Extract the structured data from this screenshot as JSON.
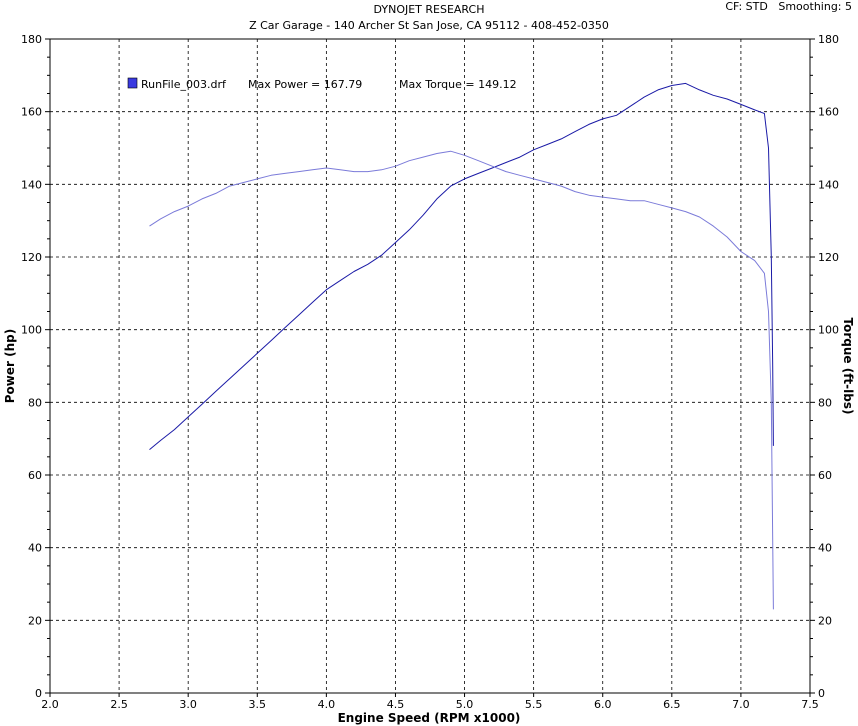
{
  "header": {
    "title": "DYNOJET RESEARCH",
    "subtitle": "Z Car Garage - 140 Archer St San Jose, CA 95112 - 408-452-0350",
    "cf_label": "CF: STD",
    "smoothing_label": "Smoothing: 5"
  },
  "legend": {
    "run_file": "RunFile_003.drf",
    "max_power": "Max Power = 167.79",
    "max_torque": "Max Torque = 149.12"
  },
  "colors": {
    "power": "#1a1aa6",
    "torque": "#7b7bd9",
    "grid": "#000000",
    "legend_swatch": "#3a3ae0"
  },
  "chart_data": {
    "type": "line",
    "xlabel": "Engine Speed (RPM x1000)",
    "ylabel_left": "Power (hp)",
    "ylabel_right": "Torque (ft-lbs)",
    "xlim": [
      2.0,
      7.5
    ],
    "ylim": [
      0,
      180
    ],
    "x_ticks": [
      "2.0",
      "2.5",
      "3.0",
      "3.5",
      "4.0",
      "4.5",
      "5.0",
      "5.5",
      "6.0",
      "6.5",
      "7.0",
      "7.5"
    ],
    "y_ticks": [
      "0",
      "20",
      "40",
      "60",
      "80",
      "100",
      "120",
      "140",
      "160",
      "180"
    ],
    "grid": true,
    "series": [
      {
        "name": "Power",
        "points": [
          [
            2.72,
            67
          ],
          [
            2.8,
            69.5
          ],
          [
            2.9,
            72.5
          ],
          [
            3.0,
            76
          ],
          [
            3.1,
            79.5
          ],
          [
            3.2,
            83
          ],
          [
            3.3,
            86.5
          ],
          [
            3.4,
            90
          ],
          [
            3.5,
            93.5
          ],
          [
            3.6,
            97
          ],
          [
            3.7,
            100.5
          ],
          [
            3.8,
            104
          ],
          [
            3.9,
            107.5
          ],
          [
            4.0,
            111
          ],
          [
            4.1,
            113.5
          ],
          [
            4.2,
            116
          ],
          [
            4.3,
            118
          ],
          [
            4.4,
            120.5
          ],
          [
            4.5,
            124
          ],
          [
            4.6,
            127.5
          ],
          [
            4.7,
            131.5
          ],
          [
            4.8,
            136
          ],
          [
            4.9,
            139.5
          ],
          [
            5.0,
            141.5
          ],
          [
            5.1,
            143
          ],
          [
            5.2,
            144.5
          ],
          [
            5.3,
            146
          ],
          [
            5.4,
            147.5
          ],
          [
            5.5,
            149.5
          ],
          [
            5.6,
            151
          ],
          [
            5.7,
            152.5
          ],
          [
            5.8,
            154.5
          ],
          [
            5.9,
            156.5
          ],
          [
            6.0,
            158
          ],
          [
            6.1,
            159
          ],
          [
            6.2,
            161.5
          ],
          [
            6.3,
            164
          ],
          [
            6.4,
            166
          ],
          [
            6.5,
            167.2
          ],
          [
            6.6,
            167.79
          ],
          [
            6.7,
            166
          ],
          [
            6.8,
            164.5
          ],
          [
            6.9,
            163.5
          ],
          [
            7.0,
            162
          ],
          [
            7.1,
            160.5
          ],
          [
            7.17,
            159.5
          ],
          [
            7.2,
            150
          ],
          [
            7.22,
            120
          ],
          [
            7.23,
            90
          ],
          [
            7.235,
            68
          ]
        ]
      },
      {
        "name": "Torque",
        "points": [
          [
            2.72,
            128.5
          ],
          [
            2.8,
            130.5
          ],
          [
            2.9,
            132.5
          ],
          [
            3.0,
            134
          ],
          [
            3.1,
            136
          ],
          [
            3.2,
            137.5
          ],
          [
            3.3,
            139.5
          ],
          [
            3.4,
            140.5
          ],
          [
            3.5,
            141.5
          ],
          [
            3.6,
            142.5
          ],
          [
            3.7,
            143
          ],
          [
            3.8,
            143.5
          ],
          [
            3.9,
            144
          ],
          [
            4.0,
            144.5
          ],
          [
            4.1,
            144
          ],
          [
            4.2,
            143.5
          ],
          [
            4.3,
            143.5
          ],
          [
            4.4,
            144
          ],
          [
            4.5,
            145
          ],
          [
            4.6,
            146.5
          ],
          [
            4.7,
            147.5
          ],
          [
            4.8,
            148.5
          ],
          [
            4.9,
            149.12
          ],
          [
            5.0,
            148
          ],
          [
            5.1,
            146.5
          ],
          [
            5.2,
            145
          ],
          [
            5.3,
            143.5
          ],
          [
            5.4,
            142.5
          ],
          [
            5.5,
            141.5
          ],
          [
            5.6,
            140.5
          ],
          [
            5.7,
            139.5
          ],
          [
            5.8,
            138
          ],
          [
            5.9,
            137
          ],
          [
            6.0,
            136.5
          ],
          [
            6.1,
            136
          ],
          [
            6.2,
            135.5
          ],
          [
            6.3,
            135.5
          ],
          [
            6.4,
            134.5
          ],
          [
            6.5,
            133.5
          ],
          [
            6.6,
            132.5
          ],
          [
            6.7,
            131
          ],
          [
            6.8,
            128.5
          ],
          [
            6.9,
            125.5
          ],
          [
            7.0,
            121.5
          ],
          [
            7.1,
            119
          ],
          [
            7.17,
            115.5
          ],
          [
            7.2,
            105
          ],
          [
            7.22,
            80
          ],
          [
            7.235,
            23
          ]
        ]
      }
    ]
  }
}
